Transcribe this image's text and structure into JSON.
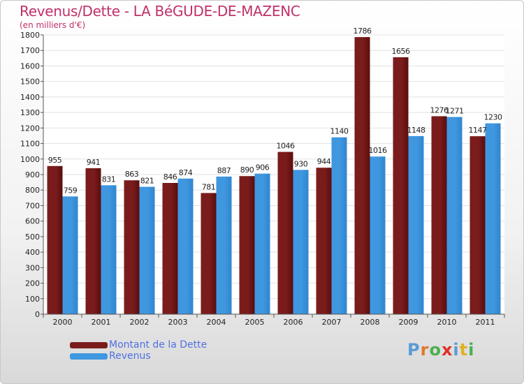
{
  "title": "Revenus/Dette - LA BéGUDE-DE-MAZENC",
  "subtitle": "(en milliers d'€)",
  "brand": "Proxiti",
  "brand_colors": [
    "#5b9bd5",
    "#e07a2a",
    "#4caf50",
    "#e0302a",
    "#5b9bd5",
    "#e0b020",
    "#4caf50"
  ],
  "chart_data": {
    "type": "bar",
    "categories": [
      "2000",
      "2001",
      "2002",
      "2003",
      "2004",
      "2005",
      "2006",
      "2007",
      "2008",
      "2009",
      "2010",
      "2011"
    ],
    "series": [
      {
        "name": "Montant de la Dette",
        "color": "#7a1c1c",
        "values": [
          955,
          941,
          863,
          846,
          781,
          890,
          1046,
          944,
          1786,
          1656,
          1276,
          1147
        ],
        "labels": [
          "955",
          "941",
          "863",
          "846",
          "781",
          "890",
          "1046",
          "944",
          "1786",
          "1656",
          "1276",
          "1147"
        ]
      },
      {
        "name": "Revenus",
        "color": "#3f97e0",
        "values": [
          759,
          831,
          821,
          874,
          887,
          906,
          930,
          1140,
          1016,
          1148,
          1271,
          1230
        ],
        "labels": [
          "759",
          "831",
          "821",
          "874",
          "887",
          "906",
          "930",
          "1140",
          "1016",
          "1148",
          "1271",
          "1230"
        ]
      }
    ],
    "y_ticks": [
      "0",
      "100",
      "200",
      "300",
      "400",
      "500",
      "600",
      "700",
      "800",
      "900",
      "1000",
      "1100",
      "1200",
      "1300",
      "1400",
      "1500",
      "1600",
      "1700",
      "1800"
    ],
    "ylim": [
      0,
      1800
    ],
    "grid": true,
    "legend_position": "bottom-left"
  }
}
